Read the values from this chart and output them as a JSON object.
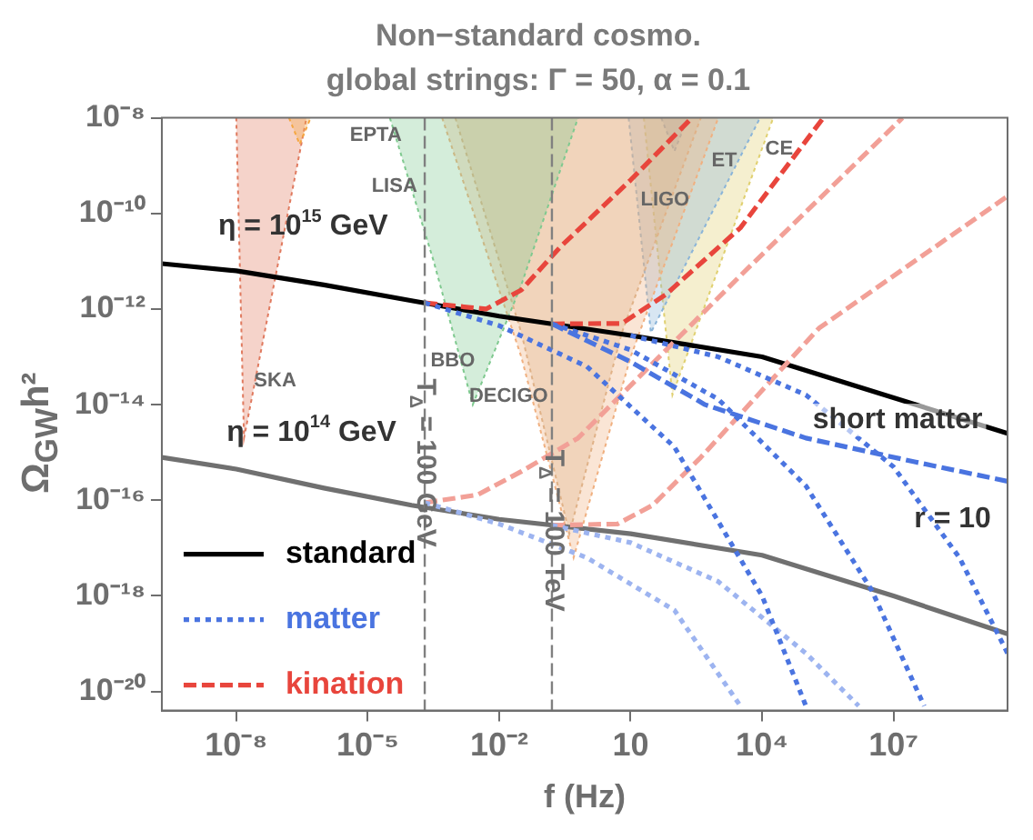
{
  "chart_data": {
    "type": "line",
    "title": "Non−standard cosmo.",
    "subtitle": "global strings: Γ = 50, α = 0.1",
    "xlabel": "f (Hz)",
    "ylabel": "Ω$_{GW}$h²",
    "log": "xy",
    "grid": false,
    "legend": "bottom left",
    "xlim": [
      2e-10,
      4000000000.0
    ],
    "ylim": [
      4e-21,
      1e-08
    ],
    "xticks": [
      {
        "value": 1e-08,
        "label": "10⁻⁸"
      },
      {
        "value": 1e-05,
        "label": "10⁻⁵"
      },
      {
        "value": 0.01,
        "label": "10⁻²"
      },
      10,
      {
        "value": 10000,
        "label": "10⁴"
      },
      {
        "value": 10000000,
        "label": "10⁷"
      }
    ],
    "yticks": [
      {
        "value": 1e-08,
        "label": "10⁻⁸"
      },
      {
        "value": 1e-10,
        "label": "10⁻¹⁰"
      },
      {
        "value": 1e-12,
        "label": "10⁻¹²"
      },
      {
        "value": 1e-14,
        "label": "10⁻¹⁴"
      },
      {
        "value": 1e-16,
        "label": "10⁻¹⁶"
      },
      {
        "value": 1e-18,
        "label": "10⁻¹⁸"
      },
      {
        "value": 1e-20,
        "label": "10⁻²⁰"
      }
    ],
    "series": [
      {
        "type": "area",
        "color": "#f5a742",
        "x": [
          1.6e-07,
          2.8e-07,
          5e-07
        ],
        "values": [
          1e-08,
          2.8e-09,
          1e-08
        ]
      },
      {
        "type": "area",
        "color": "#e07a5f",
        "x": [
          1e-08,
          1.5e-08,
          4e-07
        ],
        "values": [
          1e-08,
          2e-15,
          1e-08
        ]
      },
      {
        "type": "area",
        "color": "#7fc98f",
        "x": [
          3.2e-05,
          0.00032,
          0.0025,
          0.032,
          0.63
        ],
        "values": [
          1e-08,
          1e-11,
          1e-14,
          3.2e-12,
          1e-08
        ]
      },
      {
        "type": "area",
        "color": "#f0b080",
        "x": [
          0.0005,
          0.032,
          0.5,
          10,
          1000
        ],
        "values": [
          1e-08,
          1e-13,
          6.3e-18,
          1e-13,
          1e-08
        ]
      },
      {
        "type": "area",
        "color": "#d9b38c",
        "x": [
          0.001,
          0.032,
          0.4,
          6.3,
          400
        ],
        "values": [
          1e-08,
          3.2e-13,
          2e-17,
          3.2e-13,
          1e-08
        ]
      },
      {
        "type": "area",
        "color": "#8ab4d8",
        "x": [
          9,
          29,
          9000
        ],
        "values": [
          1e-08,
          3.2e-13,
          1e-08
        ]
      },
      {
        "type": "area",
        "color": "#e0d070",
        "x": [
          20,
          90,
          18000
        ],
        "values": [
          1e-08,
          1.6e-14,
          1e-08
        ]
      },
      {
        "type": "area",
        "color": "#6b8fc0",
        "x": [
          50,
          100,
          200
        ],
        "values": [
          1e-08,
          2e-09,
          1e-08
        ]
      },
      {
        "name": "standard",
        "type": "line",
        "color": "#000000",
        "line_style": "solid",
        "x": [
          2e-10,
          1e-08,
          1e-06,
          0.0001,
          0.01,
          10,
          10000,
          10000000.0,
          4000000000.0
        ],
        "values": [
          8.9e-12,
          6.3e-12,
          3.2e-12,
          1.5e-12,
          7.1e-13,
          2.8e-13,
          1e-13,
          1.4e-14,
          2.5e-15
        ]
      },
      {
        "type": "line",
        "color": "#707070",
        "line_style": "solid",
        "x": [
          2e-10,
          1e-08,
          1e-06,
          0.0001,
          0.01,
          10,
          10000,
          10000000.0,
          4000000000.0
        ],
        "values": [
          7.9e-16,
          4.5e-16,
          1.8e-16,
          7.9e-17,
          4e-17,
          2e-17,
          7.1e-18,
          1e-18,
          1.6e-19
        ]
      },
      {
        "name": "matter",
        "type": "line",
        "color": "#4a74e0",
        "line_style": "dotted",
        "x": [
          0.0002,
          0.01,
          1,
          100,
          10000,
          100000
        ],
        "values": [
          1.35e-12,
          4.5e-13,
          6.3e-14,
          1.3e-15,
          1e-18,
          5e-21
        ]
      },
      {
        "type": "line",
        "color": "#4a74e0",
        "line_style": "dotted",
        "x": [
          0.16,
          10,
          1000,
          100000,
          3200000.0,
          50000000.0
        ],
        "values": [
          4.9e-13,
          1.4e-13,
          1.3e-14,
          2e-16,
          1.3e-18,
          5e-21
        ]
      },
      {
        "type": "line",
        "color": "#4a74e0",
        "line_style": "dotted",
        "x": [
          10,
          1000,
          100000,
          10000000.0,
          320000000.0,
          4000000000.0
        ],
        "values": [
          2.8e-13,
          1e-13,
          1.6e-14,
          5e-16,
          6.3e-18,
          6.3e-20
        ]
      },
      {
        "type": "line",
        "color": "#9db4f0",
        "line_style": "dotted",
        "x": [
          0.0002,
          0.01,
          1,
          100,
          3200
        ],
        "values": [
          8.9e-17,
          3.2e-17,
          6.3e-18,
          5e-19,
          5e-21
        ]
      },
      {
        "type": "line",
        "color": "#9db4f0",
        "line_style": "dotted",
        "x": [
          0.16,
          10,
          1000,
          100000,
          1600000.0
        ],
        "values": [
          3e-17,
          1.3e-17,
          2e-18,
          6.3e-20,
          5e-21
        ]
      },
      {
        "type": "line",
        "color": "#4a74e0",
        "line_style": "dashed",
        "x": [
          0.16,
          10,
          500,
          100000,
          32000000.0,
          4000000000.0
        ],
        "values": [
          4.9e-13,
          7.9e-14,
          1e-14,
          2e-15,
          6.3e-16,
          2.5e-16
        ]
      },
      {
        "name": "kination",
        "type": "line",
        "color": "#e8453c",
        "line_style": "dashed",
        "x": [
          0.0002,
          0.005,
          0.032,
          0.25,
          10,
          250
        ],
        "values": [
          1.35e-12,
          1e-12,
          2.5e-12,
          2e-11,
          5e-10,
          1e-08
        ]
      },
      {
        "type": "line",
        "color": "#e8453c",
        "line_style": "dashed",
        "x": [
          0.16,
          6.3,
          63,
          3200,
          250000
        ],
        "values": [
          4.9e-13,
          5e-13,
          2e-12,
          5e-11,
          1e-08
        ]
      },
      {
        "type": "line",
        "color": "#f2a097",
        "line_style": "dashed",
        "x": [
          0.0002,
          0.0032,
          0.032,
          0.63,
          3200,
          16000000.0
        ],
        "values": [
          8.9e-17,
          1.3e-16,
          4e-16,
          2e-15,
          5e-12,
          1e-08
        ]
      },
      {
        "type": "line",
        "color": "#f2a097",
        "line_style": "dashed",
        "x": [
          0.16,
          5,
          32,
          400,
          200000,
          4000000000.0
        ],
        "values": [
          3e-17,
          3.2e-17,
          7.9e-17,
          7.9e-16,
          4e-13,
          2.3e-10
        ]
      }
    ],
    "ref_lines": [
      {
        "axis": "x",
        "value": 0.0002,
        "color": "#808080",
        "line_style": "dashed"
      },
      {
        "axis": "x",
        "value": 0.16,
        "color": "#808080",
        "line_style": "dashed"
      }
    ],
    "annotations": [
      "η = 10$^{15}$ GeV",
      "η = 10$^{14}$ GeV",
      "short matter",
      "r = 10",
      "EPTA",
      "SKA",
      "LISA",
      "BBO",
      "DECIGO",
      "LIGO",
      "ET",
      "CE",
      "T$_{Δ}$ = 100 GeV",
      "T$_{Δ}$ = 100 TeV"
    ]
  }
}
